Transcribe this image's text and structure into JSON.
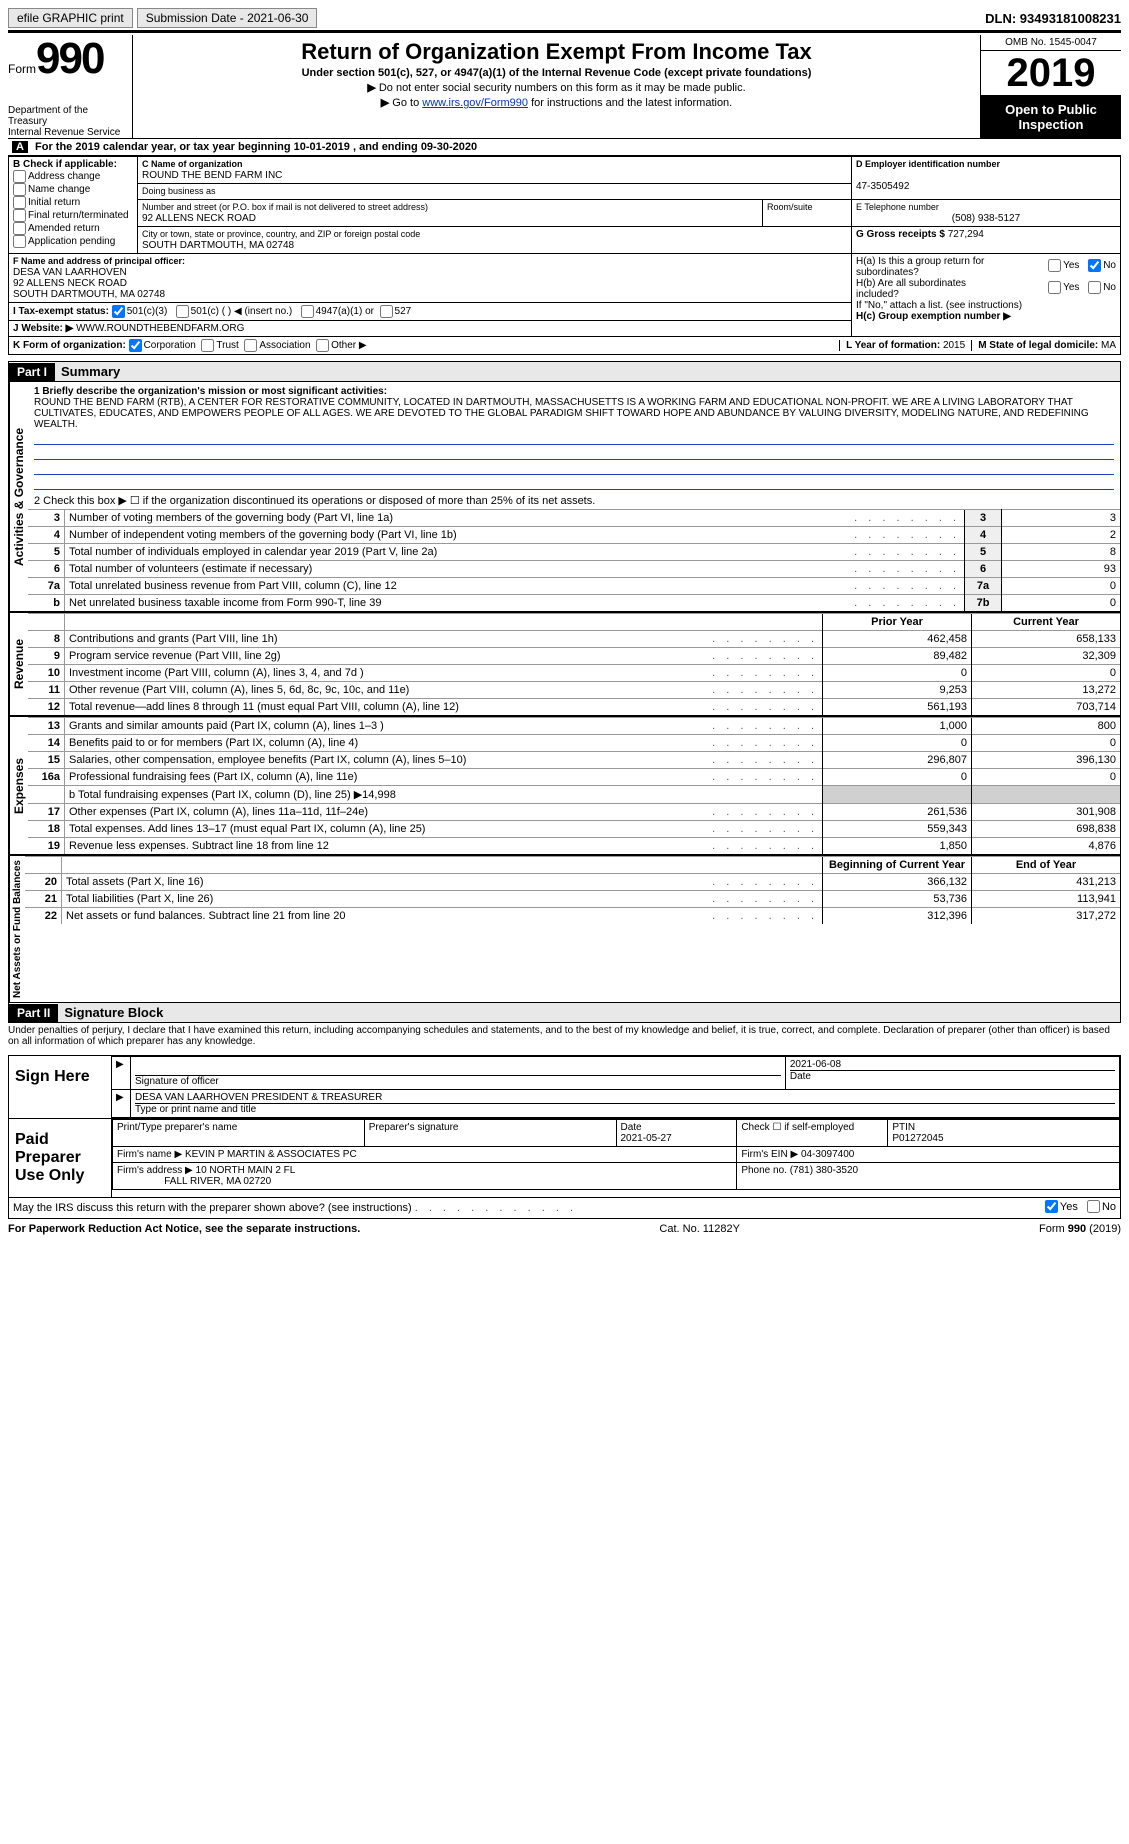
{
  "topbar": {
    "efile": "efile GRAPHIC print",
    "submission": "Submission Date - 2021-06-30",
    "dln": "DLN: 93493181008231"
  },
  "header": {
    "form_word": "Form",
    "form_num": "990",
    "dept": "Department of the Treasury\nInternal Revenue Service",
    "title": "Return of Organization Exempt From Income Tax",
    "subtitle": "Under section 501(c), 527, or 4947(a)(1) of the Internal Revenue Code (except private foundations)",
    "instr1": "Do not enter social security numbers on this form as it may be made public.",
    "instr2_pre": "Go to ",
    "instr2_link": "www.irs.gov/Form990",
    "instr2_post": " for instructions and the latest information.",
    "omb": "OMB No. 1545-0047",
    "year": "2019",
    "open": "Open to Public Inspection"
  },
  "period": {
    "prefix": "For the 2019 calendar year, or tax year beginning ",
    "begin": "10-01-2019",
    "mid": " , and ending ",
    "end": "09-30-2020"
  },
  "boxB": {
    "label": "B Check if applicable:",
    "items": [
      "Address change",
      "Name change",
      "Initial return",
      "Final return/terminated",
      "Amended return",
      "Application pending"
    ]
  },
  "boxC": {
    "label_name": "C Name of organization",
    "org_name": "ROUND THE BEND FARM INC",
    "dba_label": "Doing business as",
    "dba": "",
    "street_label": "Number and street (or P.O. box if mail is not delivered to street address)",
    "street": "92 ALLENS NECK ROAD",
    "room_label": "Room/suite",
    "city_label": "City or town, state or province, country, and ZIP or foreign postal code",
    "city": "SOUTH DARTMOUTH, MA  02748"
  },
  "boxD": {
    "label": "D Employer identification number",
    "ein": "47-3505492"
  },
  "boxE": {
    "label": "E Telephone number",
    "phone": "(508) 938-5127"
  },
  "boxG": {
    "label": "G Gross receipts $",
    "amount": "727,294"
  },
  "boxF": {
    "label": "F Name and address of principal officer:",
    "name": "DESA VAN LAARHOVEN",
    "addr1": "92 ALLENS NECK ROAD",
    "addr2": "SOUTH DARTMOUTH, MA  02748"
  },
  "boxH": {
    "a": "H(a) Is this a group return for subordinates?",
    "b": "H(b) Are all subordinates included?",
    "note": "If \"No,\" attach a list. (see instructions)",
    "c": "H(c) Group exemption number ▶"
  },
  "boxI": {
    "label": "I   Tax-exempt status:",
    "opts": [
      "501(c)(3)",
      "501(c) (   ) ◀ (insert no.)",
      "4947(a)(1) or",
      "527"
    ]
  },
  "boxJ": {
    "label": "J   Website: ▶",
    "url": "WWW.ROUNDTHEBENDFARM.ORG"
  },
  "boxK": {
    "label": "K Form of organization:",
    "opts": [
      "Corporation",
      "Trust",
      "Association",
      "Other ▶"
    ]
  },
  "boxL": {
    "label": "L Year of formation:",
    "val": "2015"
  },
  "boxM": {
    "label": "M State of legal domicile:",
    "val": "MA"
  },
  "part1": {
    "header": "Part I",
    "title": "Summary",
    "side_ag": "Activities & Governance",
    "side_rev": "Revenue",
    "side_exp": "Expenses",
    "side_net": "Net Assets or Fund Balances",
    "line1_label": "1  Briefly describe the organization's mission or most significant activities:",
    "mission": "ROUND THE BEND FARM (RTB), A CENTER FOR RESTORATIVE COMMUNITY, LOCATED IN DARTMOUTH, MASSACHUSETTS IS A WORKING FARM AND EDUCATIONAL NON-PROFIT. WE ARE A LIVING LABORATORY THAT CULTIVATES, EDUCATES, AND EMPOWERS PEOPLE OF ALL AGES. WE ARE DEVOTED TO THE GLOBAL PARADIGM SHIFT TOWARD HOPE AND ABUNDANCE BY VALUING DIVERSITY, MODELING NATURE, AND REDEFINING WEALTH.",
    "line2": "2  Check this box ▶ ☐ if the organization discontinued its operations or disposed of more than 25% of its net assets.",
    "governance_rows": [
      {
        "n": "3",
        "desc": "Number of voting members of the governing body (Part VI, line 1a)",
        "box": "3",
        "val": "3"
      },
      {
        "n": "4",
        "desc": "Number of independent voting members of the governing body (Part VI, line 1b)",
        "box": "4",
        "val": "2"
      },
      {
        "n": "5",
        "desc": "Total number of individuals employed in calendar year 2019 (Part V, line 2a)",
        "box": "5",
        "val": "8"
      },
      {
        "n": "6",
        "desc": "Total number of volunteers (estimate if necessary)",
        "box": "6",
        "val": "93"
      },
      {
        "n": "7a",
        "desc": "Total unrelated business revenue from Part VIII, column (C), line 12",
        "box": "7a",
        "val": "0"
      },
      {
        "n": "b",
        "desc": "Net unrelated business taxable income from Form 990-T, line 39",
        "box": "7b",
        "val": "0"
      }
    ],
    "col_prior": "Prior Year",
    "col_curr": "Current Year",
    "revenue_rows": [
      {
        "n": "8",
        "desc": "Contributions and grants (Part VIII, line 1h)",
        "prior": "462,458",
        "curr": "658,133"
      },
      {
        "n": "9",
        "desc": "Program service revenue (Part VIII, line 2g)",
        "prior": "89,482",
        "curr": "32,309"
      },
      {
        "n": "10",
        "desc": "Investment income (Part VIII, column (A), lines 3, 4, and 7d )",
        "prior": "0",
        "curr": "0"
      },
      {
        "n": "11",
        "desc": "Other revenue (Part VIII, column (A), lines 5, 6d, 8c, 9c, 10c, and 11e)",
        "prior": "9,253",
        "curr": "13,272"
      },
      {
        "n": "12",
        "desc": "Total revenue—add lines 8 through 11 (must equal Part VIII, column (A), line 12)",
        "prior": "561,193",
        "curr": "703,714"
      }
    ],
    "expense_rows": [
      {
        "n": "13",
        "desc": "Grants and similar amounts paid (Part IX, column (A), lines 1–3 )",
        "prior": "1,000",
        "curr": "800"
      },
      {
        "n": "14",
        "desc": "Benefits paid to or for members (Part IX, column (A), line 4)",
        "prior": "0",
        "curr": "0"
      },
      {
        "n": "15",
        "desc": "Salaries, other compensation, employee benefits (Part IX, column (A), lines 5–10)",
        "prior": "296,807",
        "curr": "396,130"
      },
      {
        "n": "16a",
        "desc": "Professional fundraising fees (Part IX, column (A), line 11e)",
        "prior": "0",
        "curr": "0"
      }
    ],
    "line16b": "b  Total fundraising expenses (Part IX, column (D), line 25) ▶14,998",
    "expense_rows2": [
      {
        "n": "17",
        "desc": "Other expenses (Part IX, column (A), lines 11a–11d, 11f–24e)",
        "prior": "261,536",
        "curr": "301,908"
      },
      {
        "n": "18",
        "desc": "Total expenses. Add lines 13–17 (must equal Part IX, column (A), line 25)",
        "prior": "559,343",
        "curr": "698,838"
      },
      {
        "n": "19",
        "desc": "Revenue less expenses. Subtract line 18 from line 12",
        "prior": "1,850",
        "curr": "4,876"
      }
    ],
    "col_begin": "Beginning of Current Year",
    "col_end": "End of Year",
    "net_rows": [
      {
        "n": "20",
        "desc": "Total assets (Part X, line 16)",
        "prior": "366,132",
        "curr": "431,213"
      },
      {
        "n": "21",
        "desc": "Total liabilities (Part X, line 26)",
        "prior": "53,736",
        "curr": "113,941"
      },
      {
        "n": "22",
        "desc": "Net assets or fund balances. Subtract line 21 from line 20",
        "prior": "312,396",
        "curr": "317,272"
      }
    ]
  },
  "part2": {
    "header": "Part II",
    "title": "Signature Block",
    "declaration": "Under penalties of perjury, I declare that I have examined this return, including accompanying schedules and statements, and to the best of my knowledge and belief, it is true, correct, and complete. Declaration of preparer (other than officer) is based on all information of which preparer has any knowledge.",
    "sign_here": "Sign Here",
    "sig_officer": "Signature of officer",
    "sig_date": "2021-06-08",
    "date_label": "Date",
    "officer_name": "DESA VAN LAARHOVEN  PRESIDENT & TREASURER",
    "type_name": "Type or print name and title",
    "paid": "Paid Preparer Use Only",
    "prep_name_label": "Print/Type preparer's name",
    "prep_sig_label": "Preparer's signature",
    "prep_date_label": "Date",
    "prep_date": "2021-05-27",
    "check_self": "Check ☐ if self-employed",
    "ptin_label": "PTIN",
    "ptin": "P01272045",
    "firm_name_label": "Firm's name    ▶",
    "firm_name": "KEVIN P MARTIN & ASSOCIATES PC",
    "firm_ein_label": "Firm's EIN ▶",
    "firm_ein": "04-3097400",
    "firm_addr_label": "Firm's address ▶",
    "firm_addr1": "10 NORTH MAIN 2 FL",
    "firm_addr2": "FALL RIVER, MA  02720",
    "phone_label": "Phone no.",
    "phone": "(781) 380-3520",
    "discuss": "May the IRS discuss this return with the preparer shown above? (see instructions)"
  },
  "footer": {
    "pra": "For Paperwork Reduction Act Notice, see the separate instructions.",
    "cat": "Cat. No. 11282Y",
    "form": "Form 990 (2019)"
  }
}
